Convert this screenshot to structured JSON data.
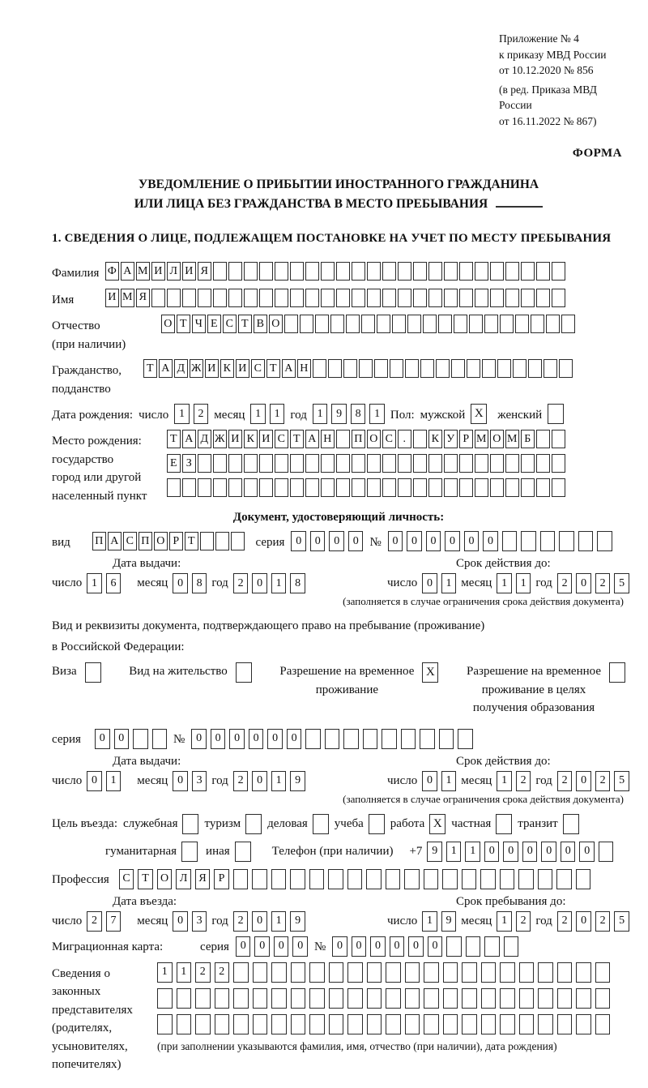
{
  "accent_color": "#111111",
  "header": {
    "appendix_lines": [
      "Приложение № 4",
      "к приказу МВД России",
      "от 10.12.2020 № 856"
    ],
    "edition_lines": [
      "(в ред. Приказа МВД России",
      "от 16.11.2022 № 867)"
    ],
    "form_label": "ФОРМА"
  },
  "title": {
    "line1": "УВЕДОМЛЕНИЕ О ПРИБЫТИИ ИНОСТРАННОГО ГРАЖДАНИНА",
    "line2": "ИЛИ ЛИЦА БЕЗ ГРАЖДАНСТВА В МЕСТО ПРЕБЫВАНИЯ"
  },
  "section1_heading": "1. СВЕДЕНИЯ О ЛИЦЕ, ПОДЛЕЖАЩЕМ ПОСТАНОВКЕ НА УЧЕТ ПО МЕСТУ ПРЕБЫВАНИЯ",
  "date_labels": {
    "day": "число",
    "month": "месяц",
    "year": "год"
  },
  "person": {
    "surname": {
      "label": "Фамилия",
      "value": "ФАМИЛИЯ",
      "total": 30
    },
    "name": {
      "label": "Имя",
      "value": "ИМЯ",
      "total": 30
    },
    "patronymic": {
      "label1": "Отчество",
      "label2": "(при наличии)",
      "value": "ОТЧЕСТВО",
      "total": 27
    },
    "citizenship": {
      "label1": "Гражданство,",
      "label2": "подданство",
      "value": "ТАДЖИКИСТАН",
      "total": 28
    },
    "birth_date": {
      "label": "Дата рождения:",
      "day": "12",
      "month": "11",
      "year": "1981"
    },
    "sex": {
      "label": "Пол:",
      "male_label": "мужской",
      "male_checked": true,
      "female_label": "женский",
      "female_checked": false
    },
    "birth_place": {
      "label1": "Место рождения:",
      "label2": "государство",
      "label3": "город или другой",
      "label4": "населенный пункт",
      "row1": {
        "value": "ТАДЖИКИСТАН ПОС. КУРМОМБ",
        "total": 26
      },
      "row2": {
        "value": "ЕЗ",
        "total": 26
      },
      "row3": {
        "value": "",
        "total": 26
      }
    }
  },
  "identity_doc": {
    "heading": "Документ, удостоверяющий личность:",
    "kind_label": "вид",
    "kind": {
      "value": "ПАСПОРТ",
      "total": 10
    },
    "series_label": "серия",
    "series": {
      "value": "0000",
      "total": 4
    },
    "number_label": "№",
    "number": {
      "value": "000000",
      "total": 12
    },
    "issue_heading": "Дата выдачи:",
    "issue": {
      "day": "16",
      "month": "08",
      "year": "2018"
    },
    "expiry_heading": "Срок действия до:",
    "expiry": {
      "day": "01",
      "month": "11",
      "year": "2025"
    },
    "note": "(заполняется в случае ограничения срока действия документа)"
  },
  "residence_doc": {
    "intro1": "Вид и реквизиты документа, подтверждающего право на пребывание (проживание)",
    "intro2": "в Российской Федерации:",
    "options": [
      {
        "lines": [
          "Виза"
        ],
        "checked": false
      },
      {
        "lines": [
          "Вид на жительство"
        ],
        "checked": false
      },
      {
        "lines": [
          "Разрешение на временное",
          "проживание"
        ],
        "checked": true
      },
      {
        "lines": [
          "Разрешение на временное",
          "проживание в целях",
          "получения образования"
        ],
        "checked": false
      }
    ],
    "checked_mark": "X",
    "series_label": "серия",
    "series": {
      "value": "00",
      "total": 4
    },
    "number_label": "№",
    "number": {
      "value": "000000",
      "total": 15
    },
    "issue_heading": "Дата выдачи:",
    "issue": {
      "day": "01",
      "month": "03",
      "year": "2019"
    },
    "expiry_heading": "Срок действия до:",
    "expiry": {
      "day": "01",
      "month": "12",
      "year": "2025"
    },
    "note": "(заполняется в случае ограничения срока действия документа)"
  },
  "visit": {
    "purpose_label": "Цель въезда:",
    "purposes_row1": [
      {
        "label": "служебная",
        "checked": false
      },
      {
        "label": "туризм",
        "checked": false
      },
      {
        "label": "деловая",
        "checked": false
      },
      {
        "label": "учеба",
        "checked": false
      },
      {
        "label": "работа",
        "checked": true
      },
      {
        "label": "частная",
        "checked": false
      },
      {
        "label": "транзит",
        "checked": false
      }
    ],
    "purposes_row2": [
      {
        "label": "гуманитарная",
        "checked": false
      },
      {
        "label": "иная",
        "checked": false
      }
    ],
    "phone_label": "Телефон (при наличии)",
    "phone_prefix": "+7",
    "phone": {
      "value": "911000000",
      "total": 10
    },
    "profession_label": "Профессия",
    "profession": {
      "value": "СТОЛЯР",
      "total": 25
    },
    "entry_heading": "Дата въезда:",
    "entry": {
      "day": "27",
      "month": "03",
      "year": "2019"
    },
    "stay_heading": "Срок пребывания до:",
    "stay": {
      "day": "19",
      "month": "12",
      "year": "2025"
    },
    "migration_card": {
      "label": "Миграционная карта:",
      "series_label": "серия",
      "series": {
        "value": "0000",
        "total": 4
      },
      "number_label": "№",
      "number": {
        "value": "000000",
        "total": 10
      }
    },
    "representatives": {
      "label1": "Сведения о",
      "label2": "законных",
      "label3": "представителях",
      "label4": "(родителях,",
      "label5": "усыновителях,",
      "label6": "попечителях)",
      "row1": {
        "value": "1122",
        "total": 24
      },
      "row2": {
        "value": "",
        "total": 24
      },
      "row3": {
        "value": "",
        "total": 24
      },
      "note": "(при заполнении указываются фамилия, имя, отчество (при наличии), дата рождения)"
    }
  }
}
